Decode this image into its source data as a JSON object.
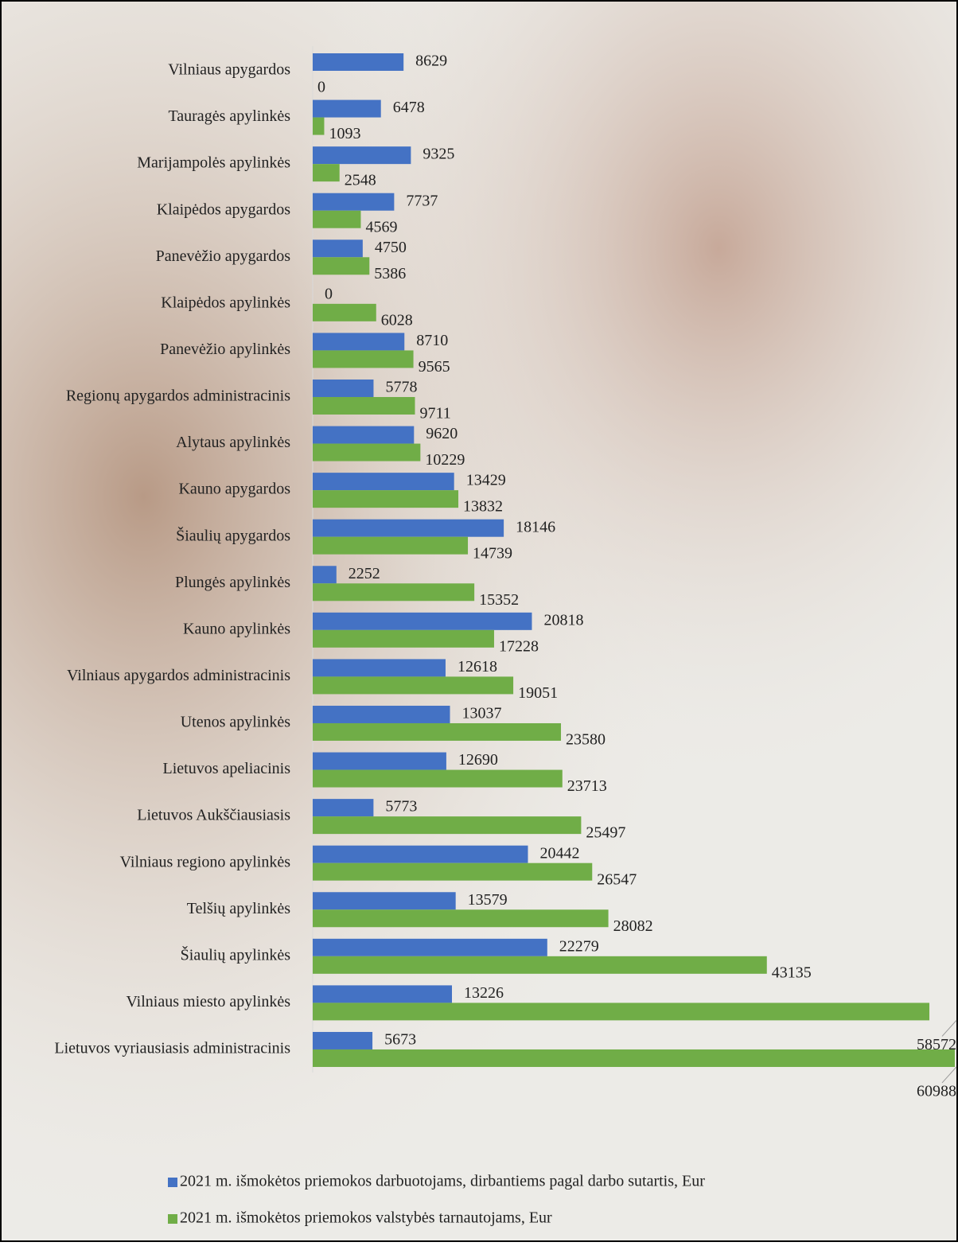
{
  "chart_data": {
    "type": "hbar",
    "categories": [
      "Vilniaus apygardos",
      "Tauragės apylinkės",
      "Marijampolės apylinkės",
      "Klaipėdos apygardos",
      "Panevėžio apygardos",
      "Klaipėdos apylinkės",
      "Panevėžio apylinkės",
      "Regionų apygardos administracinis",
      "Alytaus apylinkės",
      "Kauno apygardos",
      "Šiaulių apygardos",
      "Plungės apylinkės",
      "Kauno apylinkės",
      "Vilniaus apygardos administracinis",
      "Utenos apylinkės",
      "Lietuvos apeliacinis",
      "Lietuvos Aukščiausiasis",
      "Vilniaus regiono apylinkės",
      "Telšių apylinkės",
      "Šiaulių apylinkės",
      "Vilniaus miesto apylinkės",
      "Lietuvos vyriausiasis administracinis"
    ],
    "series": [
      {
        "name": "2021 m. išmokėtos priemokos darbuotojams, dirbantiems pagal darbo sutartis, Eur",
        "color": "#4472c4",
        "values": [
          8629,
          6478,
          9325,
          7737,
          4750,
          0,
          8710,
          5778,
          9620,
          13429,
          18146,
          2252,
          20818,
          12618,
          13037,
          12690,
          5773,
          20442,
          13579,
          22279,
          13226,
          5673
        ]
      },
      {
        "name": "2021 m. išmokėtos priemokos valstybės tarnautojams, Eur",
        "color": "#70ad47",
        "values": [
          0,
          1093,
          2548,
          4569,
          5386,
          6028,
          9565,
          9711,
          10229,
          13832,
          14739,
          15352,
          17228,
          19051,
          23580,
          23713,
          25497,
          26547,
          28082,
          43135,
          58572,
          60988
        ]
      }
    ]
  }
}
